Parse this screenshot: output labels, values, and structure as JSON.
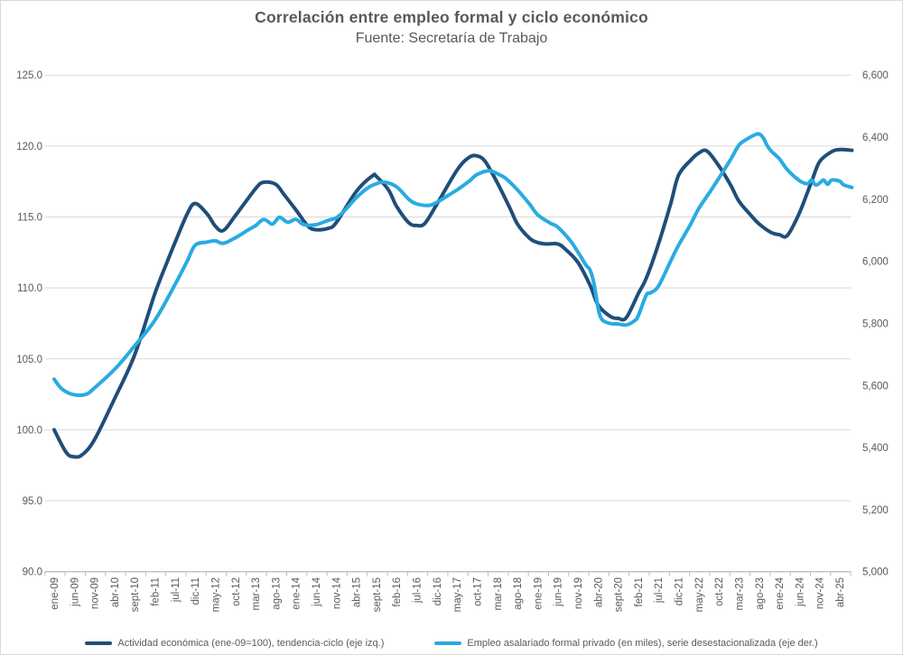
{
  "title": "Correlación entre empleo formal y ciclo económico",
  "subtitle": "Fuente: Secretaría de Trabajo",
  "colors": {
    "series_dark": "#1F4E79",
    "series_light": "#29ABE2",
    "gridline": "#D9D9D9",
    "axis_line": "#BFBFBF",
    "tick_text": "#595959",
    "title_text": "#595959"
  },
  "legend": [
    {
      "label": "Actividad económica (ene-09=100), tendencia-ciclo (eje izq.)",
      "color": "#1F4E79"
    },
    {
      "label": "Empleo asalariado formal privado (en miles), serie desestacionalizada (eje der.)",
      "color": "#29ABE2"
    }
  ],
  "chart_data": {
    "type": "line",
    "title": "Correlación entre empleo formal y ciclo económico",
    "subtitle": "Fuente: Secretaría de Trabajo",
    "grid": true,
    "legend_position": "bottom",
    "x_tick_interval_months": 5,
    "x_tick_labels": [
      "ene-09",
      "jun-09",
      "nov-09",
      "abr-10",
      "sept-10",
      "feb-11",
      "jul-11",
      "dic-11",
      "may-12",
      "oct-12",
      "mar-13",
      "ago-13",
      "ene-14",
      "jun-14",
      "nov-14",
      "abr-15",
      "sept-15",
      "feb-16",
      "jul-16",
      "dic-16",
      "may-17",
      "oct-17",
      "mar-18",
      "ago-18",
      "ene-19",
      "jun-19",
      "nov-19",
      "abr-20",
      "sept-20",
      "feb-21",
      "jul-21",
      "dic-21",
      "may-22",
      "oct-22",
      "mar-23",
      "ago-23",
      "ene-24",
      "jun-24",
      "nov-24",
      "abr-25"
    ],
    "left_axis": {
      "min": 90,
      "max": 125,
      "tick_step": 5,
      "tick_labels": [
        "125.0",
        "120.0",
        "115.0",
        "110.0",
        "105.0",
        "100.0",
        "95.0",
        "90.0"
      ]
    },
    "right_axis": {
      "min": 5000,
      "max": 6600,
      "tick_step": 200,
      "tick_labels": [
        "6,600",
        "6,400",
        "6,200",
        "6,000",
        "5,800",
        "5,600",
        "5,400",
        "5,200",
        "5,000"
      ]
    },
    "series": [
      {
        "name": "Actividad económica (ene-09=100), tendencia-ciclo (eje izq.)",
        "axis": "left",
        "color": "#1F4E79",
        "points": [
          [
            0,
            100.0
          ],
          [
            3,
            98.4
          ],
          [
            5,
            98.1
          ],
          [
            7,
            98.25
          ],
          [
            10,
            99.3
          ],
          [
            15,
            102.2
          ],
          [
            20,
            105.3
          ],
          [
            25,
            109.6
          ],
          [
            28,
            111.8
          ],
          [
            30,
            113.2
          ],
          [
            33,
            115.2
          ],
          [
            35,
            115.95
          ],
          [
            38,
            115.2
          ],
          [
            40,
            114.35
          ],
          [
            42,
            114.05
          ],
          [
            45,
            115.1
          ],
          [
            50,
            117.0
          ],
          [
            52,
            117.45
          ],
          [
            55,
            117.3
          ],
          [
            57,
            116.6
          ],
          [
            60,
            115.5
          ],
          [
            63,
            114.35
          ],
          [
            65,
            114.1
          ],
          [
            68,
            114.2
          ],
          [
            70,
            114.6
          ],
          [
            75,
            116.8
          ],
          [
            79,
            117.9
          ],
          [
            80,
            117.85
          ],
          [
            83,
            116.9
          ],
          [
            85,
            115.75
          ],
          [
            88,
            114.6
          ],
          [
            90,
            114.4
          ],
          [
            92,
            114.55
          ],
          [
            95,
            115.9
          ],
          [
            100,
            118.3
          ],
          [
            103,
            119.2
          ],
          [
            105,
            119.3
          ],
          [
            107,
            118.9
          ],
          [
            110,
            117.4
          ],
          [
            113,
            115.7
          ],
          [
            115,
            114.5
          ],
          [
            118,
            113.5
          ],
          [
            120,
            113.2
          ],
          [
            122,
            113.1
          ],
          [
            125,
            113.1
          ],
          [
            127,
            112.7
          ],
          [
            130,
            111.8
          ],
          [
            133,
            110.2
          ],
          [
            135,
            108.8
          ],
          [
            138,
            108.0
          ],
          [
            140,
            107.85
          ],
          [
            142,
            107.9
          ],
          [
            145,
            109.6
          ],
          [
            147,
            110.7
          ],
          [
            150,
            113.1
          ],
          [
            153,
            115.9
          ],
          [
            155,
            117.95
          ],
          [
            158,
            119.0
          ],
          [
            160,
            119.5
          ],
          [
            162,
            119.65
          ],
          [
            165,
            118.6
          ],
          [
            168,
            117.2
          ],
          [
            170,
            116.1
          ],
          [
            173,
            115.1
          ],
          [
            175,
            114.5
          ],
          [
            178,
            113.9
          ],
          [
            180,
            113.75
          ],
          [
            182,
            113.7
          ],
          [
            185,
            115.3
          ],
          [
            188,
            117.5
          ],
          [
            190,
            118.9
          ],
          [
            193,
            119.6
          ],
          [
            195,
            119.75
          ],
          [
            198,
            119.7
          ]
        ]
      },
      {
        "name": "Empleo asalariado formal privado (en miles), serie desestacionalizada (eje der.)",
        "axis": "right",
        "color": "#29ABE2",
        "points": [
          [
            0,
            5620
          ],
          [
            2,
            5588
          ],
          [
            5,
            5570
          ],
          [
            8,
            5572
          ],
          [
            10,
            5592
          ],
          [
            15,
            5652
          ],
          [
            20,
            5728
          ],
          [
            25,
            5810
          ],
          [
            30,
            5925
          ],
          [
            33,
            6000
          ],
          [
            35,
            6052
          ],
          [
            38,
            6062
          ],
          [
            40,
            6066
          ],
          [
            42,
            6058
          ],
          [
            45,
            6076
          ],
          [
            48,
            6100
          ],
          [
            50,
            6115
          ],
          [
            52,
            6135
          ],
          [
            54,
            6120
          ],
          [
            55,
            6130
          ],
          [
            56,
            6142
          ],
          [
            58,
            6126
          ],
          [
            60,
            6135
          ],
          [
            62,
            6118
          ],
          [
            65,
            6118
          ],
          [
            68,
            6132
          ],
          [
            70,
            6140
          ],
          [
            72,
            6162
          ],
          [
            75,
            6205
          ],
          [
            78,
            6238
          ],
          [
            80,
            6250
          ],
          [
            82,
            6255
          ],
          [
            85,
            6240
          ],
          [
            88,
            6200
          ],
          [
            90,
            6185
          ],
          [
            93,
            6180
          ],
          [
            95,
            6190
          ],
          [
            98,
            6214
          ],
          [
            100,
            6230
          ],
          [
            103,
            6258
          ],
          [
            105,
            6280
          ],
          [
            108,
            6292
          ],
          [
            110,
            6282
          ],
          [
            112,
            6268
          ],
          [
            115,
            6230
          ],
          [
            118,
            6184
          ],
          [
            120,
            6150
          ],
          [
            123,
            6124
          ],
          [
            125,
            6110
          ],
          [
            128,
            6068
          ],
          [
            130,
            6030
          ],
          [
            132,
            5988
          ],
          [
            133,
            5972
          ],
          [
            134,
            5928
          ],
          [
            135,
            5850
          ],
          [
            136,
            5812
          ],
          [
            138,
            5800
          ],
          [
            140,
            5798
          ],
          [
            142,
            5795
          ],
          [
            144,
            5808
          ],
          [
            145,
            5825
          ],
          [
            147,
            5892
          ],
          [
            148,
            5898
          ],
          [
            150,
            5920
          ],
          [
            153,
            6000
          ],
          [
            155,
            6052
          ],
          [
            158,
            6120
          ],
          [
            160,
            6170
          ],
          [
            163,
            6228
          ],
          [
            165,
            6268
          ],
          [
            168,
            6330
          ],
          [
            170,
            6375
          ],
          [
            172,
            6394
          ],
          [
            174,
            6408
          ],
          [
            175,
            6410
          ],
          [
            176,
            6398
          ],
          [
            177,
            6372
          ],
          [
            178,
            6355
          ],
          [
            180,
            6330
          ],
          [
            182,
            6295
          ],
          [
            185,
            6260
          ],
          [
            187,
            6250
          ],
          [
            188,
            6262
          ],
          [
            189,
            6246
          ],
          [
            190,
            6252
          ],
          [
            191,
            6262
          ],
          [
            192,
            6248
          ],
          [
            193,
            6262
          ],
          [
            195,
            6258
          ],
          [
            196,
            6246
          ],
          [
            198,
            6238
          ]
        ]
      }
    ]
  }
}
